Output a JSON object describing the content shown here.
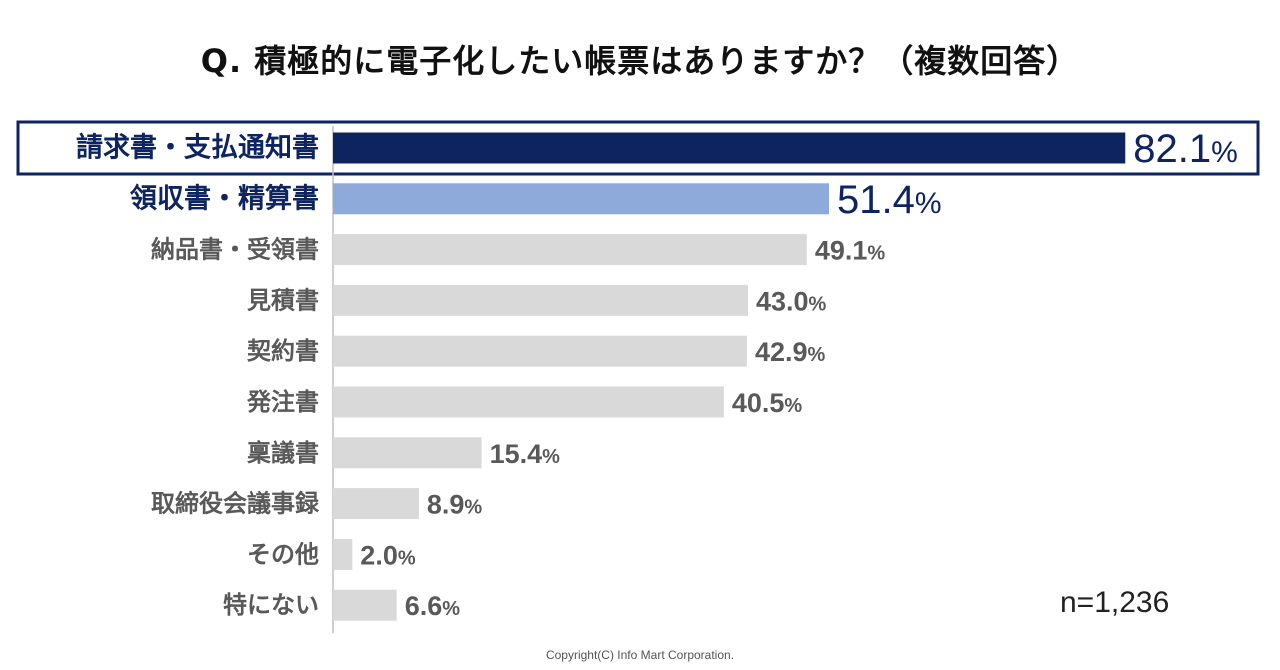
{
  "chart_data": {
    "type": "bar",
    "orientation": "horizontal",
    "title": "Q. 積極的に電子化したい帳票はありますか？（複数回答）",
    "categories": [
      "請求書・支払通知書",
      "領収書・精算書",
      "納品書・受領書",
      "見積書",
      "契約書",
      "発注書",
      "稟議書",
      "取締役会議事録",
      "その他",
      "特にない"
    ],
    "values": [
      82.1,
      51.4,
      49.1,
      43.0,
      42.9,
      40.5,
      15.4,
      8.9,
      2.0,
      6.6
    ],
    "value_labels": [
      "82.1",
      "51.4",
      "49.1",
      "43.0",
      "42.9",
      "40.5",
      "15.4",
      "8.9",
      "2.0",
      "6.6"
    ],
    "unit": "%",
    "highlight_ranks": [
      1,
      2
    ],
    "colors": {
      "rank1_bar": "#0d2461",
      "rank2_bar": "#8eaadb",
      "other_bar": "#d9d9d9",
      "rank_label": "#0d2461",
      "other_label": "#595959",
      "highlight_frame": "#0d2461",
      "axis_line": "#bfbfbf"
    },
    "xlim": [
      0,
      100
    ],
    "sample_size": "n=1,236",
    "grid": false,
    "legend": "none"
  },
  "footer": {
    "copyright": "Copyright(C) Info Mart Corporation."
  }
}
